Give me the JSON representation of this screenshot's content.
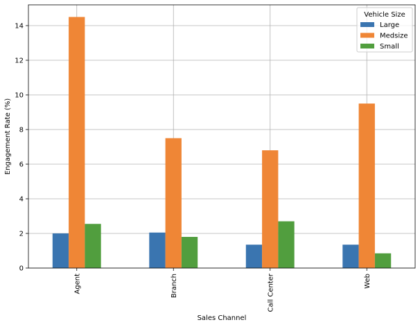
{
  "chart_data": {
    "type": "bar",
    "title": "",
    "xlabel": "Sales Channel",
    "ylabel": "Engagement Rate (%)",
    "categories": [
      "Agent",
      "Branch",
      "Call Center",
      "Web"
    ],
    "ylim": [
      0,
      15.2
    ],
    "yticks": [
      0,
      2,
      4,
      6,
      8,
      10,
      12,
      14
    ],
    "grid": true,
    "legend": {
      "title": "Vehicle Size",
      "placement": "top-right"
    },
    "series": [
      {
        "name": "Large",
        "color": "#3a75b0",
        "values": [
          2.0,
          2.05,
          1.35,
          1.35
        ]
      },
      {
        "name": "Medsize",
        "color": "#ef8636",
        "values": [
          14.5,
          7.5,
          6.8,
          9.5
        ]
      },
      {
        "name": "Small",
        "color": "#519e3e",
        "values": [
          2.55,
          1.8,
          2.7,
          0.85
        ]
      }
    ]
  }
}
